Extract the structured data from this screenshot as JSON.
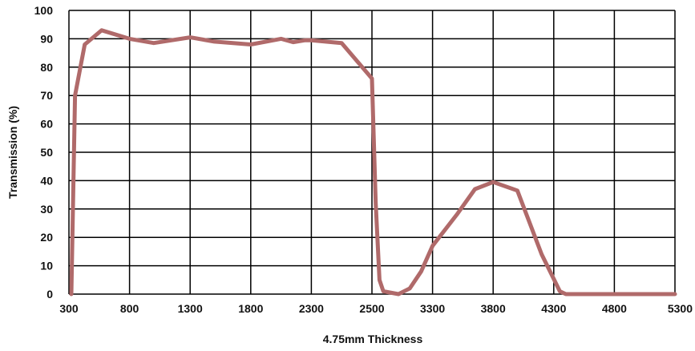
{
  "chart_data": {
    "type": "line",
    "xlabel": "4.75mm Thickness",
    "ylabel": "Transmission (%)",
    "x_ticks": [
      "300",
      "800",
      "1300",
      "1800",
      "2300",
      "2500",
      "3300",
      "3800",
      "4300",
      "4800",
      "5300"
    ],
    "y_ticks": [
      "0",
      "10",
      "20",
      "30",
      "40",
      "50",
      "60",
      "70",
      "80",
      "90",
      "100"
    ],
    "ylim": [
      0,
      100
    ],
    "grid": true,
    "series": [
      {
        "color": "#b06a6a",
        "points": [
          {
            "x": 320,
            "y": 0
          },
          {
            "x": 350,
            "y": 70
          },
          {
            "x": 430,
            "y": 88
          },
          {
            "x": 570,
            "y": 93
          },
          {
            "x": 800,
            "y": 90
          },
          {
            "x": 1000,
            "y": 88.5
          },
          {
            "x": 1300,
            "y": 90.5
          },
          {
            "x": 1500,
            "y": 89
          },
          {
            "x": 1800,
            "y": 88
          },
          {
            "x": 2050,
            "y": 90
          },
          {
            "x": 2150,
            "y": 88.8
          },
          {
            "x": 2250,
            "y": 89.5
          },
          {
            "x": 2300,
            "y": 89.5
          },
          {
            "x": 2400,
            "y": 88.5
          },
          {
            "x": 2500,
            "y": 76
          },
          {
            "x": 2550,
            "y": 32
          },
          {
            "x": 2600,
            "y": 5
          },
          {
            "x": 2650,
            "y": 1
          },
          {
            "x": 2850,
            "y": 0
          },
          {
            "x": 3000,
            "y": 2
          },
          {
            "x": 3150,
            "y": 8
          },
          {
            "x": 3300,
            "y": 17
          },
          {
            "x": 3500,
            "y": 28
          },
          {
            "x": 3650,
            "y": 37
          },
          {
            "x": 3800,
            "y": 39.5
          },
          {
            "x": 4000,
            "y": 36.5
          },
          {
            "x": 4200,
            "y": 14
          },
          {
            "x": 4350,
            "y": 1
          },
          {
            "x": 4400,
            "y": 0
          },
          {
            "x": 5300,
            "y": 0
          }
        ]
      }
    ]
  }
}
